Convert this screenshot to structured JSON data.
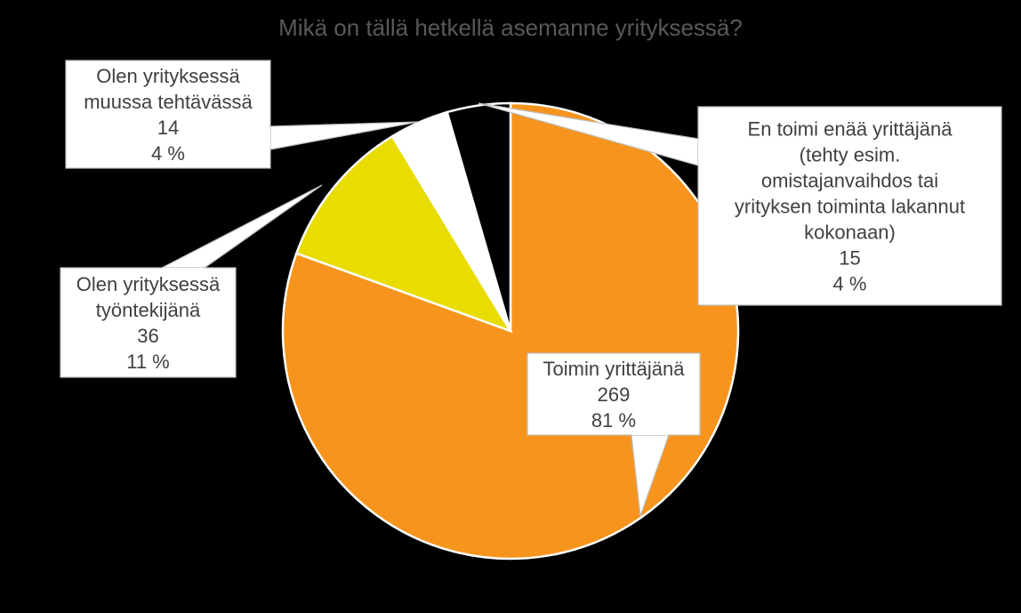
{
  "chart_data": {
    "type": "pie",
    "title": "Mikä on tällä hetkellä asemanne yrityksessä?",
    "slices": [
      {
        "label_lines": [
          "Toimin yrittäjänä"
        ],
        "value": 269,
        "value_text": "269",
        "percent_text": "81 %",
        "color": "#f7941d"
      },
      {
        "label_lines": [
          "Olen yrityksessä",
          "työntekijänä"
        ],
        "value": 36,
        "value_text": "36",
        "percent_text": "11 %",
        "color": "#e8dc00"
      },
      {
        "label_lines": [
          "Olen yrityksessä",
          "muussa tehtävässä"
        ],
        "value": 14,
        "value_text": "14",
        "percent_text": "4 %",
        "color": "#ffffff"
      },
      {
        "label_lines": [
          "En toimi enää yrittäjänä",
          "(tehty esim.",
          "omistajanvaihdos tai",
          "yrityksen toiminta lakannut",
          "kokonaan)"
        ],
        "value": 15,
        "value_text": "15",
        "percent_text": "4 %",
        "color": "#000000"
      }
    ],
    "start_angle_deg": 0,
    "direction": "clockwise",
    "legend": "none",
    "background": "#000000"
  }
}
